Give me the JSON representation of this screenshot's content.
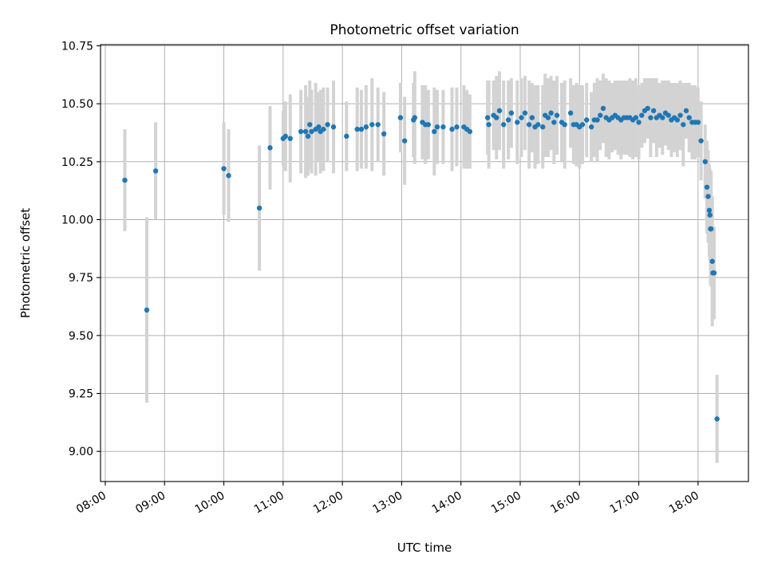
{
  "chart_data": {
    "type": "scatter",
    "title": "Photometric offset variation",
    "xlabel": "UTC time",
    "ylabel": "Photometric offset",
    "x_unit": "hours UTC",
    "xlim": [
      7.92,
      18.85
    ],
    "ylim": [
      8.87,
      10.755
    ],
    "grid": true,
    "legend": "none",
    "x_ticks": [
      {
        "value": 8,
        "label": "08:00"
      },
      {
        "value": 9,
        "label": "09:00"
      },
      {
        "value": 10,
        "label": "10:00"
      },
      {
        "value": 11,
        "label": "11:00"
      },
      {
        "value": 12,
        "label": "12:00"
      },
      {
        "value": 13,
        "label": "13:00"
      },
      {
        "value": 14,
        "label": "14:00"
      },
      {
        "value": 15,
        "label": "15:00"
      },
      {
        "value": 16,
        "label": "16:00"
      },
      {
        "value": 17,
        "label": "17:00"
      },
      {
        "value": 18,
        "label": "18:00"
      }
    ],
    "y_ticks": [
      {
        "value": 9.0,
        "label": "9.00"
      },
      {
        "value": 9.25,
        "label": "9.25"
      },
      {
        "value": 9.5,
        "label": "9.50"
      },
      {
        "value": 9.75,
        "label": "9.75"
      },
      {
        "value": 10.0,
        "label": "10.00"
      },
      {
        "value": 10.25,
        "label": "10.25"
      },
      {
        "value": 10.5,
        "label": "10.50"
      },
      {
        "value": 10.75,
        "label": "10.75"
      }
    ],
    "colors": {
      "point": "#1f77b4",
      "errorbar": "#d3d3d3",
      "grid": "#b0b0b0"
    },
    "series": [
      {
        "x": [
          8.33,
          8.7,
          8.85,
          10.0,
          10.08,
          10.6,
          10.78,
          11.0,
          11.04,
          11.12,
          11.3,
          11.38,
          11.42,
          11.45,
          11.48,
          11.55,
          11.6,
          11.63,
          11.68,
          11.75,
          11.85,
          12.07,
          12.25,
          12.32,
          12.4,
          12.5,
          12.6,
          12.7,
          12.98,
          13.05,
          13.2,
          13.22,
          13.35,
          13.4,
          13.45,
          13.55,
          13.6,
          13.7,
          13.85,
          13.93,
          14.05,
          14.1,
          14.15,
          14.45,
          14.47,
          14.55,
          14.6,
          14.65,
          14.72,
          14.8,
          14.85,
          14.95,
          15.02,
          15.08,
          15.15,
          15.2,
          15.25,
          15.3,
          15.38,
          15.42,
          15.47,
          15.52,
          15.57,
          15.62,
          15.7,
          15.75,
          15.85,
          15.9,
          15.95,
          16.0,
          16.05,
          16.12,
          16.2,
          16.25,
          16.3,
          16.35,
          16.4,
          16.45,
          16.5,
          16.55,
          16.6,
          16.65,
          16.7,
          16.75,
          16.8,
          16.85,
          16.9,
          16.95,
          17.0,
          17.05,
          17.1,
          17.15,
          17.2,
          17.25,
          17.3,
          17.35,
          17.4,
          17.45,
          17.5,
          17.55,
          17.6,
          17.65,
          17.7,
          17.75,
          17.8,
          17.85,
          17.9,
          17.95,
          18.0,
          18.05,
          18.12,
          18.15,
          18.17,
          18.19,
          18.2,
          18.21,
          18.22,
          18.24,
          18.25,
          18.27,
          18.32
        ],
        "y": [
          10.17,
          9.61,
          10.21,
          10.22,
          10.19,
          10.05,
          10.31,
          10.35,
          10.36,
          10.35,
          10.38,
          10.38,
          10.36,
          10.41,
          10.38,
          10.39,
          10.4,
          10.38,
          10.39,
          10.41,
          10.4,
          10.36,
          10.39,
          10.39,
          10.4,
          10.41,
          10.41,
          10.37,
          10.44,
          10.34,
          10.43,
          10.44,
          10.42,
          10.41,
          10.41,
          10.38,
          10.4,
          10.4,
          10.39,
          10.4,
          10.4,
          10.39,
          10.38,
          10.44,
          10.41,
          10.45,
          10.44,
          10.47,
          10.41,
          10.43,
          10.46,
          10.42,
          10.44,
          10.46,
          10.41,
          10.44,
          10.4,
          10.41,
          10.4,
          10.45,
          10.44,
          10.46,
          10.42,
          10.45,
          10.42,
          10.41,
          10.46,
          10.41,
          10.41,
          10.4,
          10.41,
          10.43,
          10.4,
          10.43,
          10.43,
          10.45,
          10.48,
          10.44,
          10.43,
          10.44,
          10.45,
          10.44,
          10.43,
          10.44,
          10.44,
          10.44,
          10.43,
          10.44,
          10.42,
          10.45,
          10.47,
          10.48,
          10.44,
          10.47,
          10.44,
          10.45,
          10.44,
          10.46,
          10.45,
          10.43,
          10.44,
          10.43,
          10.45,
          10.41,
          10.47,
          10.44,
          10.42,
          10.42,
          10.42,
          10.34,
          10.25,
          10.14,
          10.1,
          10.04,
          10.02,
          9.96,
          9.96,
          9.82,
          9.77,
          9.77,
          9.14
        ],
        "yerr": [
          0.22,
          0.4,
          0.21,
          0.2,
          0.2,
          0.27,
          0.18,
          0.12,
          0.15,
          0.19,
          0.18,
          0.2,
          0.17,
          0.19,
          0.18,
          0.2,
          0.15,
          0.18,
          0.18,
          0.16,
          0.2,
          0.15,
          0.18,
          0.17,
          0.18,
          0.2,
          0.16,
          0.18,
          0.15,
          0.19,
          0.16,
          0.2,
          0.16,
          0.17,
          0.15,
          0.19,
          0.16,
          0.16,
          0.18,
          0.17,
          0.18,
          0.17,
          0.16,
          0.16,
          0.19,
          0.15,
          0.18,
          0.17,
          0.19,
          0.17,
          0.15,
          0.18,
          0.17,
          0.16,
          0.19,
          0.15,
          0.18,
          0.17,
          0.18,
          0.18,
          0.17,
          0.16,
          0.18,
          0.17,
          0.17,
          0.19,
          0.15,
          0.17,
          0.18,
          0.18,
          0.17,
          0.16,
          0.15,
          0.16,
          0.18,
          0.15,
          0.15,
          0.17,
          0.17,
          0.15,
          0.15,
          0.16,
          0.17,
          0.16,
          0.16,
          0.17,
          0.17,
          0.17,
          0.16,
          0.14,
          0.14,
          0.13,
          0.17,
          0.14,
          0.17,
          0.14,
          0.16,
          0.14,
          0.15,
          0.16,
          0.15,
          0.16,
          0.15,
          0.18,
          0.12,
          0.15,
          0.16,
          0.16,
          0.15,
          0.17,
          0.16,
          0.2,
          0.2,
          0.2,
          0.2,
          0.24,
          0.25,
          0.28,
          0.2,
          0.2,
          0.19
        ]
      }
    ]
  }
}
